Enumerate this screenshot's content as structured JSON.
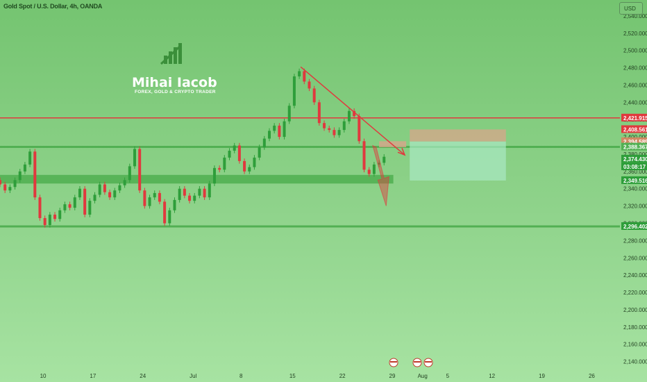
{
  "header": {
    "symbol_line": "Gold Spot / U.S. Dollar, 4h, OANDA",
    "currency_button": "USD"
  },
  "brand": {
    "name": "Mihai Iacob",
    "tagline": "FOREX, GOLD & CRYPTO TRADER"
  },
  "colors": {
    "background": "#7ec97a",
    "bull_candle": "#2e9e3a",
    "bear_candle": "#e0393e",
    "resistance_line": "#e0393e",
    "support_zone": "#52b053",
    "target_zone": "#a9e8c3",
    "stop_zone": "#d8a58b"
  },
  "chart_data": {
    "type": "candlestick",
    "title": "Gold Spot / U.S. Dollar, 4h, OANDA",
    "ylim": [
      2130,
      2560
    ],
    "y_ticks": [
      "2,140.000",
      "2,160.000",
      "2,180.000",
      "2,200.000",
      "2,220.000",
      "2,240.000",
      "2,260.000",
      "2,280.000",
      "2,300.000",
      "2,320.000",
      "2,340.000",
      "2,360.000",
      "2,380.000",
      "2,400.000",
      "2,420.000",
      "2,440.000",
      "2,460.000",
      "2,480.000",
      "2,500.000",
      "2,520.000",
      "2,540.000"
    ],
    "y_tick_values": [
      2140,
      2160,
      2180,
      2200,
      2220,
      2240,
      2260,
      2280,
      2300,
      2320,
      2340,
      2360,
      2380,
      2400,
      2420,
      2440,
      2460,
      2480,
      2500,
      2520,
      2540
    ],
    "x_ticks": [
      "10",
      "17",
      "24",
      "Jul",
      "8",
      "15",
      "22",
      "29",
      "Aug",
      "5",
      "12",
      "19",
      "26"
    ],
    "x_tick_values": [
      10,
      17,
      24,
      31,
      38,
      45,
      52,
      59,
      63,
      67,
      73,
      80,
      87
    ],
    "x_range": [
      4,
      91
    ],
    "series": [
      {
        "x": [
          4,
          4.7,
          5.4,
          6.1,
          6.8,
          7.5,
          8.2,
          8.9,
          9.6,
          10.3,
          11,
          11.7,
          12.4,
          13.1,
          13.8,
          14.5,
          15.2,
          15.9,
          16.6,
          17.3,
          18,
          18.7,
          19.4,
          20.1,
          20.8,
          21.5,
          22.2,
          22.9,
          23.6,
          24.3,
          25,
          25.7,
          26.4,
          27.1,
          27.8,
          28.5,
          29.2,
          29.9,
          30.6,
          31.3,
          32,
          32.7,
          33.4,
          34.1,
          34.8,
          35.5,
          36.2,
          36.9,
          37.6,
          38.3,
          39,
          39.7,
          40.4,
          41.1,
          41.8,
          42.5,
          43.2,
          43.9,
          44.6,
          45.3,
          46,
          46.7,
          47.4,
          48.1,
          48.8,
          49.5,
          50.2,
          50.9,
          51.6,
          52.3,
          53,
          53.7,
          54.4,
          55.1,
          55.8,
          56.5,
          57.2,
          57.9
        ],
        "close": [
          2345,
          2338,
          2342,
          2350,
          2360,
          2368,
          2383,
          2330,
          2306,
          2298,
          2310,
          2305,
          2315,
          2322,
          2318,
          2330,
          2340,
          2310,
          2326,
          2333,
          2345,
          2336,
          2330,
          2338,
          2344,
          2350,
          2366,
          2386,
          2338,
          2320,
          2330,
          2335,
          2325,
          2300,
          2315,
          2327,
          2340,
          2332,
          2326,
          2332,
          2340,
          2330,
          2346,
          2364,
          2362,
          2376,
          2384,
          2390,
          2372,
          2360,
          2365,
          2376,
          2388,
          2398,
          2407,
          2413,
          2400,
          2418,
          2436,
          2470,
          2476,
          2464,
          2456,
          2440,
          2416,
          2410,
          2408,
          2402,
          2408,
          2418,
          2430,
          2424,
          2395,
          2362,
          2357,
          2368,
          2370,
          2377
        ],
        "open": [
          2350,
          2345,
          2338,
          2342,
          2350,
          2360,
          2368,
          2383,
          2330,
          2306,
          2298,
          2310,
          2305,
          2315,
          2322,
          2318,
          2330,
          2340,
          2310,
          2326,
          2333,
          2345,
          2336,
          2330,
          2338,
          2344,
          2350,
          2366,
          2386,
          2338,
          2320,
          2330,
          2335,
          2325,
          2300,
          2315,
          2327,
          2340,
          2332,
          2326,
          2332,
          2340,
          2330,
          2346,
          2364,
          2362,
          2376,
          2384,
          2390,
          2372,
          2360,
          2365,
          2376,
          2388,
          2398,
          2407,
          2413,
          2400,
          2418,
          2436,
          2470,
          2476,
          2464,
          2456,
          2440,
          2416,
          2410,
          2408,
          2402,
          2408,
          2418,
          2430,
          2424,
          2395,
          2362,
          2357,
          2368,
          2370
        ]
      }
    ],
    "levels": [
      {
        "label": "2,421.915",
        "value": 2421.915,
        "kind": "resistance"
      },
      {
        "label": "2,388.367",
        "value": 2388.367,
        "kind": "pivot"
      },
      {
        "label": "2,296.402",
        "value": 2296.402,
        "kind": "support"
      }
    ],
    "price_labels": [
      "2,421.915",
      "2,408.561",
      "2,394.589",
      "2,388.367",
      "2,374.430",
      "03:08:17",
      "2,349.516",
      "2,296.402"
    ],
    "annotations": [
      {
        "type": "trendline",
        "from": {
          "x": 46.2,
          "y": 2481
        },
        "to": {
          "x": 60.8,
          "y": 2379
        },
        "color": "resistance"
      },
      {
        "type": "arrow",
        "direction": "down",
        "from_x": 56.5,
        "to_x": 58,
        "color": "resistance"
      },
      {
        "type": "zone",
        "name": "support-zone",
        "y_range": [
          2346,
          2356
        ]
      },
      {
        "type": "zone",
        "name": "short-entry-box",
        "y_range": [
          2388,
          2395
        ]
      },
      {
        "type": "zone",
        "name": "stop-box",
        "y_range": [
          2394.6,
          2408.6
        ]
      },
      {
        "type": "zone",
        "name": "target-box",
        "y_range": [
          2349.5,
          2394.6
        ]
      }
    ]
  }
}
